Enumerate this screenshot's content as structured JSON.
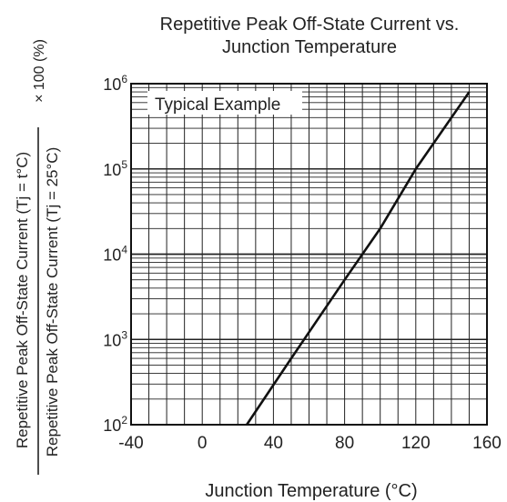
{
  "chart_data": {
    "type": "line",
    "title_lines": [
      "Repetitive Peak Off-State Current vs.",
      "Junction Temperature"
    ],
    "xlabel": "Junction Temperature   (°C)",
    "ylabel_numerator": "Repetitive Peak Off-State Current (Tj = t°C)",
    "ylabel_denominator": "Repetitive Peak Off-State Current (Tj = 25°C)",
    "ylabel_multiplier": "× 100 (%)",
    "annotation": "Typical Example",
    "xlim": [
      -40,
      160
    ],
    "ylim": [
      100,
      1000000
    ],
    "y_scale": "log",
    "grid": true,
    "x_ticks": [
      -40,
      0,
      40,
      80,
      120,
      160
    ],
    "x_tick_labels": [
      "-40",
      "0",
      "40",
      "80",
      "120",
      "160"
    ],
    "y_ticks": [
      {
        "base": "10",
        "exp": "2",
        "value": 100
      },
      {
        "base": "10",
        "exp": "3",
        "value": 1000
      },
      {
        "base": "10",
        "exp": "4",
        "value": 10000
      },
      {
        "base": "10",
        "exp": "5",
        "value": 100000
      },
      {
        "base": "10",
        "exp": "6",
        "value": 1000000
      }
    ],
    "series": [
      {
        "x": [
          25,
          50,
          80,
          100,
          120,
          150
        ],
        "y": [
          100,
          600,
          5000,
          20000,
          100000,
          800000
        ]
      }
    ],
    "line_color": "#111111",
    "grid_color": "#222222"
  }
}
